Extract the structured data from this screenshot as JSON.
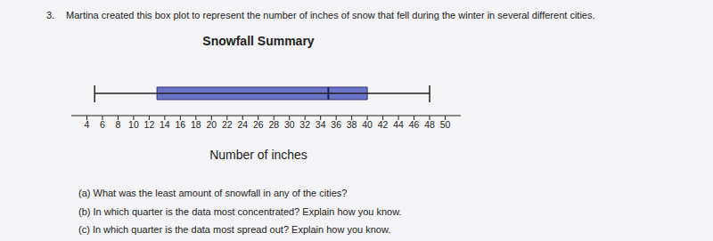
{
  "chart_data": {
    "type": "box",
    "title": "Snowfall Summary",
    "xlabel": "Number of inches",
    "annotations": [
      "3.",
      "Martina created this box plot to represent the number of inches of snow that fell during the winter in several different cities.",
      "(a) What was the least amount of snowfall in any of the cities?",
      "(b) In which quarter is the data most concentrated? Explain how you know.",
      "(c) In which quarter is the data most spread out? Explain how you know."
    ],
    "min": 5,
    "q1": 13,
    "median": 35,
    "q3": 40,
    "max": 48,
    "xlim": [
      2,
      52
    ],
    "xticks": [
      4,
      6,
      8,
      10,
      12,
      14,
      16,
      18,
      20,
      22,
      24,
      26,
      28,
      30,
      32,
      34,
      36,
      38,
      40,
      42,
      44,
      46,
      48,
      50
    ],
    "color": "#6b74c9"
  }
}
